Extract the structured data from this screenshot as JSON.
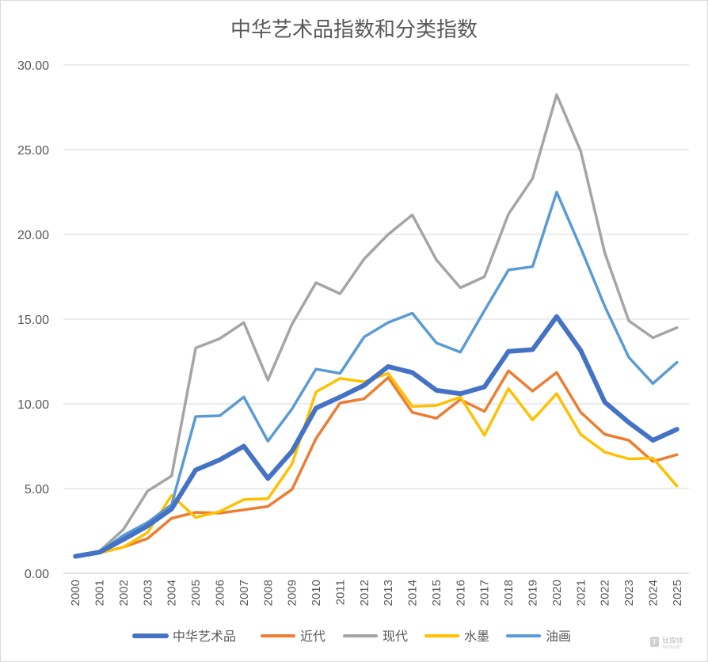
{
  "chart_data": {
    "type": "line",
    "title": "中华艺术品指数和分类指数",
    "xlabel": "",
    "ylabel": "",
    "ylim": [
      0,
      30
    ],
    "yticks": [
      "0.00",
      "5.00",
      "10.00",
      "15.00",
      "20.00",
      "25.00",
      "30.00"
    ],
    "grid": true,
    "legend_position": "bottom",
    "categories": [
      "2000",
      "2001",
      "2002",
      "2003",
      "2004",
      "2005",
      "2006",
      "2007",
      "2008",
      "2009",
      "2010",
      "2011",
      "2012",
      "2013",
      "2014",
      "2015",
      "2016",
      "2017",
      "2018",
      "2019",
      "2020",
      "2021",
      "2022",
      "2023",
      "2024",
      "2025"
    ],
    "series": [
      {
        "name": "中华艺术品",
        "color": "#4472c4",
        "values": [
          1.0,
          1.25,
          2.0,
          2.8,
          3.8,
          6.1,
          6.7,
          7.5,
          5.6,
          7.2,
          9.75,
          10.4,
          11.1,
          12.2,
          11.85,
          10.8,
          10.6,
          11.0,
          13.1,
          13.2,
          15.15,
          13.15,
          10.1,
          8.9,
          7.85,
          8.5
        ]
      },
      {
        "name": "近代",
        "color": "#ed7d31",
        "values": [
          1.0,
          1.2,
          1.55,
          2.05,
          3.25,
          3.6,
          3.55,
          3.75,
          3.95,
          4.95,
          7.95,
          10.05,
          10.3,
          11.55,
          9.5,
          9.15,
          10.25,
          9.55,
          11.95,
          10.75,
          11.85,
          9.5,
          8.2,
          7.85,
          6.6,
          7.0
        ]
      },
      {
        "name": "现代",
        "color": "#a5a5a5",
        "values": [
          1.0,
          1.3,
          2.6,
          4.85,
          5.75,
          13.3,
          13.85,
          14.8,
          11.4,
          14.7,
          17.15,
          16.5,
          18.55,
          20.0,
          21.15,
          18.5,
          16.85,
          17.5,
          21.2,
          23.3,
          28.25,
          24.9,
          18.9,
          14.9,
          13.9,
          14.5
        ]
      },
      {
        "name": "水墨",
        "color": "#ffc000",
        "values": [
          1.0,
          1.2,
          1.55,
          2.4,
          4.6,
          3.3,
          3.65,
          4.35,
          4.4,
          6.45,
          10.7,
          11.5,
          11.3,
          11.8,
          9.85,
          9.9,
          10.4,
          8.15,
          10.9,
          9.05,
          10.6,
          8.2,
          7.15,
          6.75,
          6.8,
          5.15
        ]
      },
      {
        "name": "油画",
        "color": "#5b9bd5",
        "values": [
          1.0,
          1.25,
          2.25,
          3.0,
          4.05,
          9.25,
          9.3,
          10.4,
          7.8,
          9.7,
          12.05,
          11.8,
          13.95,
          14.8,
          15.35,
          13.6,
          13.05,
          15.5,
          17.9,
          18.1,
          22.5,
          19.2,
          15.75,
          12.75,
          11.2,
          12.45
        ]
      }
    ]
  },
  "watermark": {
    "text": "钛媒体",
    "sub": "TMTPOST"
  }
}
